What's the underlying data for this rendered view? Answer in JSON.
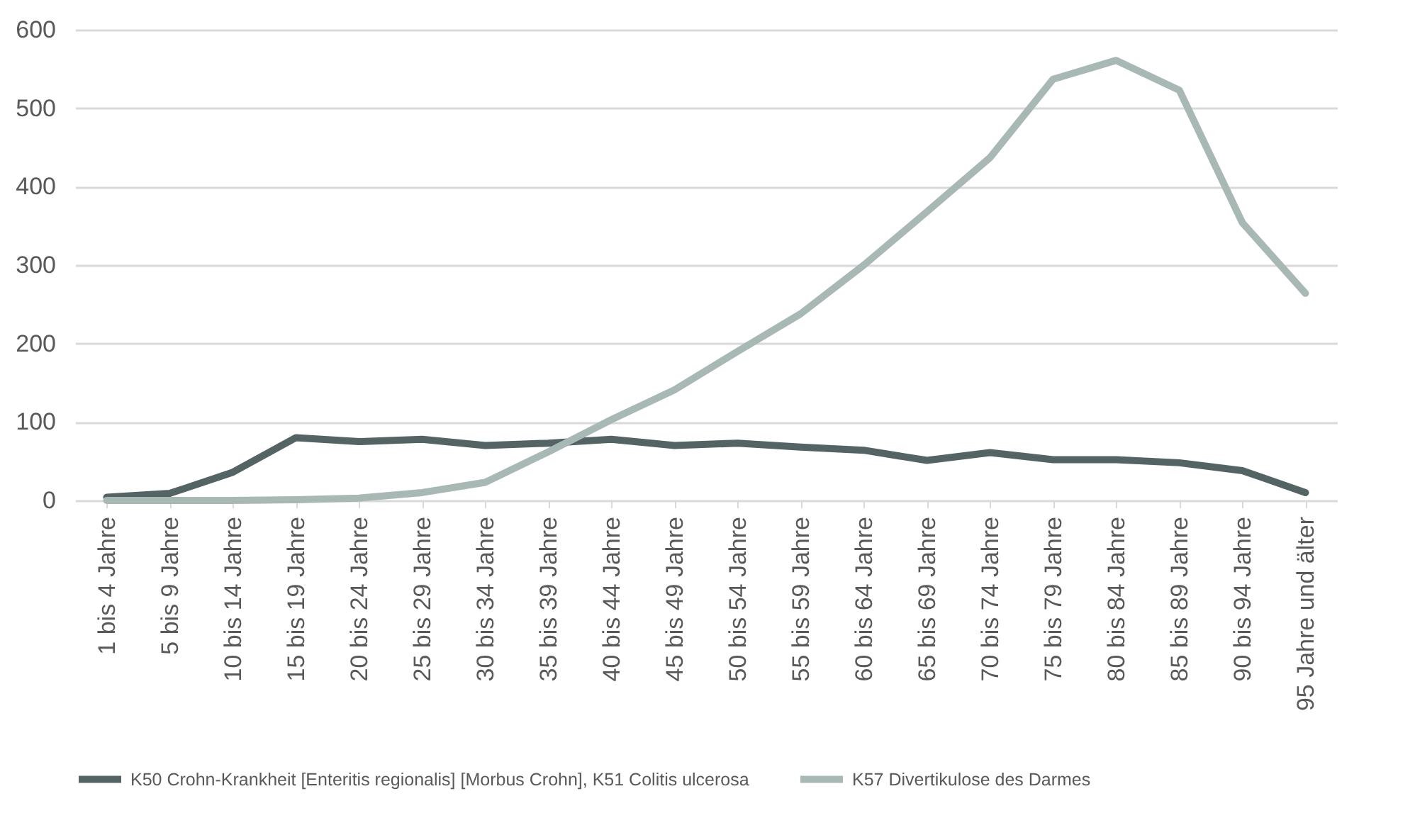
{
  "chart_data": {
    "type": "line",
    "categories": [
      "1 bis 4 Jahre",
      "5 bis 9 Jahre",
      "10 bis 14 Jahre",
      "15 bis 19 Jahre",
      "20 bis 24 Jahre",
      "25 bis 29 Jahre",
      "30 bis 34 Jahre",
      "35 bis 39 Jahre",
      "40 bis 44 Jahre",
      "45 bis 49 Jahre",
      "50 bis 54 Jahre",
      "55 bis 59 Jahre",
      "60 bis 64 Jahre",
      "65 bis 69 Jahre",
      "70 bis 74 Jahre",
      "75 bis 79 Jahre",
      "80 bis 84 Jahre",
      "85 bis 89 Jahre",
      "90 bis 94 Jahre",
      "95 Jahre und älter"
    ],
    "series": [
      {
        "name": "K50 Crohn-Krankheit [Enteritis regionalis] [Morbus Crohn], K51 Colitis ulcerosa",
        "color": "#546464",
        "values": [
          4,
          9,
          36,
          80,
          75,
          78,
          70,
          73,
          78,
          70,
          73,
          68,
          64,
          51,
          61,
          52,
          52,
          48,
          38,
          10
        ]
      },
      {
        "name": "K57 Divertikulose des Darmes",
        "color": "#a8b8b5",
        "values": [
          0,
          0,
          0,
          1,
          3,
          10,
          23,
          62,
          103,
          141,
          190,
          238,
          300,
          368,
          437,
          537,
          561,
          523,
          354,
          264
        ]
      }
    ],
    "ylim": [
      0,
      600
    ],
    "yticks": [
      0,
      100,
      200,
      300,
      400,
      500,
      600
    ],
    "grid": "y",
    "legend": "bottom",
    "line_style": "solid",
    "marker": "none"
  }
}
